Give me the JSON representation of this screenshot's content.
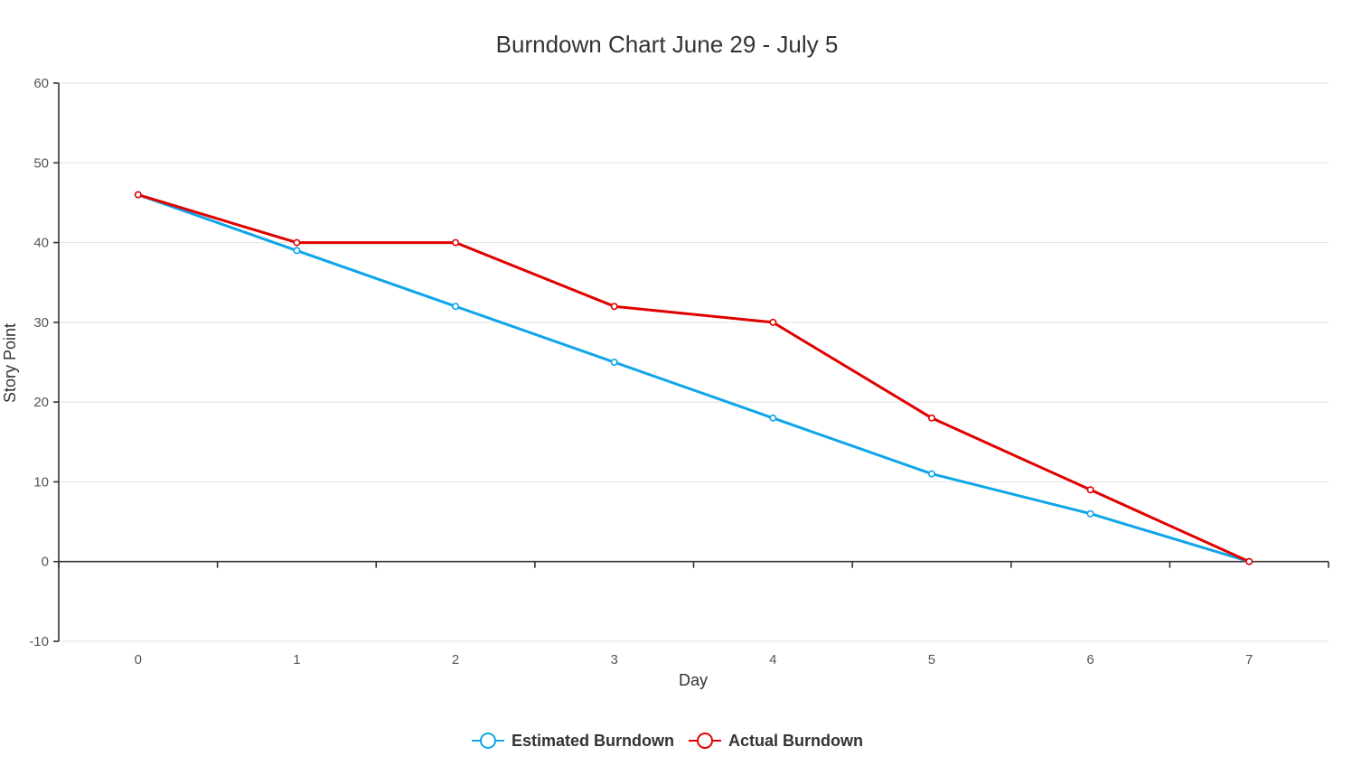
{
  "chart_data": {
    "type": "line",
    "title": "Burndown Chart June 29 - July 5",
    "xlabel": "Day",
    "ylabel": "Story Point",
    "x": [
      0,
      1,
      2,
      3,
      4,
      5,
      6,
      7
    ],
    "x_ticks": [
      "0",
      "1",
      "2",
      "3",
      "4",
      "5",
      "6",
      "7"
    ],
    "y_ticks": [
      "60",
      "50",
      "40",
      "30",
      "20",
      "10",
      "0",
      "-10"
    ],
    "ylim": [
      -10,
      60
    ],
    "xlim": [
      -0.5,
      7.5
    ],
    "grid": true,
    "legend_position": "bottom-center",
    "series": [
      {
        "name": "Estimated Burndown",
        "color": "#0ea5e9",
        "values": [
          46,
          39,
          32,
          25,
          18,
          11,
          6,
          0
        ]
      },
      {
        "name": "Actual Burndown",
        "color": "#e00000",
        "values": [
          46,
          40,
          40,
          32,
          30,
          18,
          9,
          0
        ]
      }
    ]
  }
}
